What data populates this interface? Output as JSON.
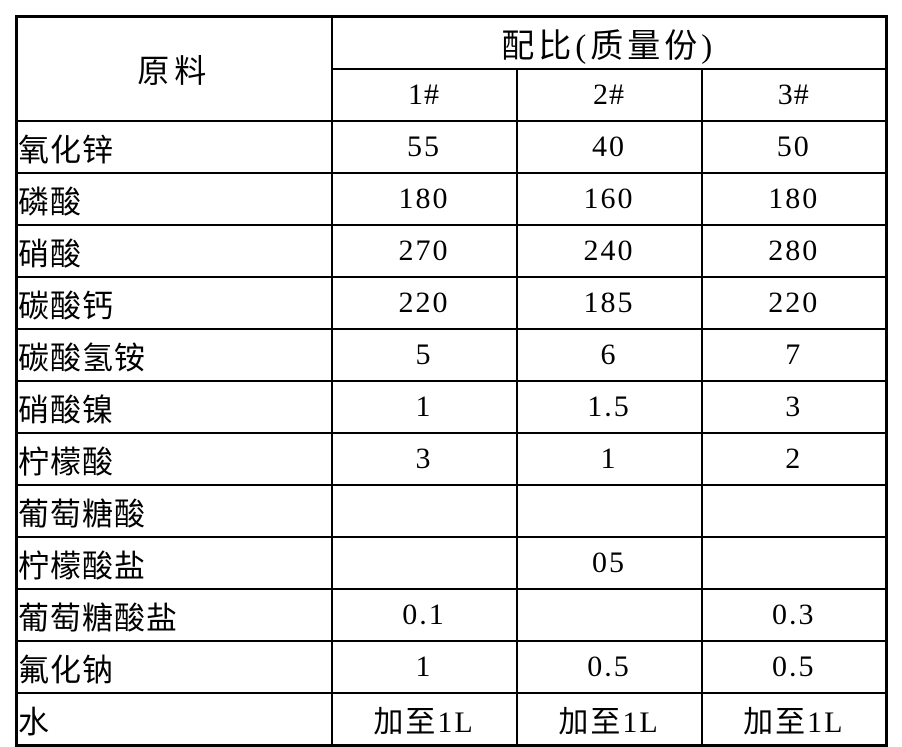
{
  "table": {
    "material_header": "原料",
    "ratio_header": "配比(质量份)",
    "sample_headers": [
      "1#",
      "2#",
      "3#"
    ],
    "rows": [
      {
        "material": "氧化锌",
        "values": [
          "55",
          "40",
          "50"
        ]
      },
      {
        "material": "磷酸",
        "values": [
          "180",
          "160",
          "180"
        ]
      },
      {
        "material": "硝酸",
        "values": [
          "270",
          "240",
          "280"
        ]
      },
      {
        "material": "碳酸钙",
        "values": [
          "220",
          "185",
          "220"
        ]
      },
      {
        "material": "碳酸氢铵",
        "values": [
          "5",
          "6",
          "7"
        ]
      },
      {
        "material": "硝酸镍",
        "values": [
          "1",
          "1.5",
          "3"
        ]
      },
      {
        "material": "柠檬酸",
        "values": [
          "3",
          "1",
          "2"
        ]
      },
      {
        "material": "葡萄糖酸",
        "values": [
          "",
          "",
          ""
        ]
      },
      {
        "material": "柠檬酸盐",
        "values": [
          "",
          "05",
          ""
        ]
      },
      {
        "material": "葡萄糖酸盐",
        "values": [
          "0.1",
          "",
          "0.3"
        ]
      },
      {
        "material": "氟化钠",
        "values": [
          "1",
          "0.5",
          "0.5"
        ]
      },
      {
        "material": "水",
        "values": [
          "加至1L",
          "加至1L",
          "加至1L"
        ]
      }
    ]
  }
}
